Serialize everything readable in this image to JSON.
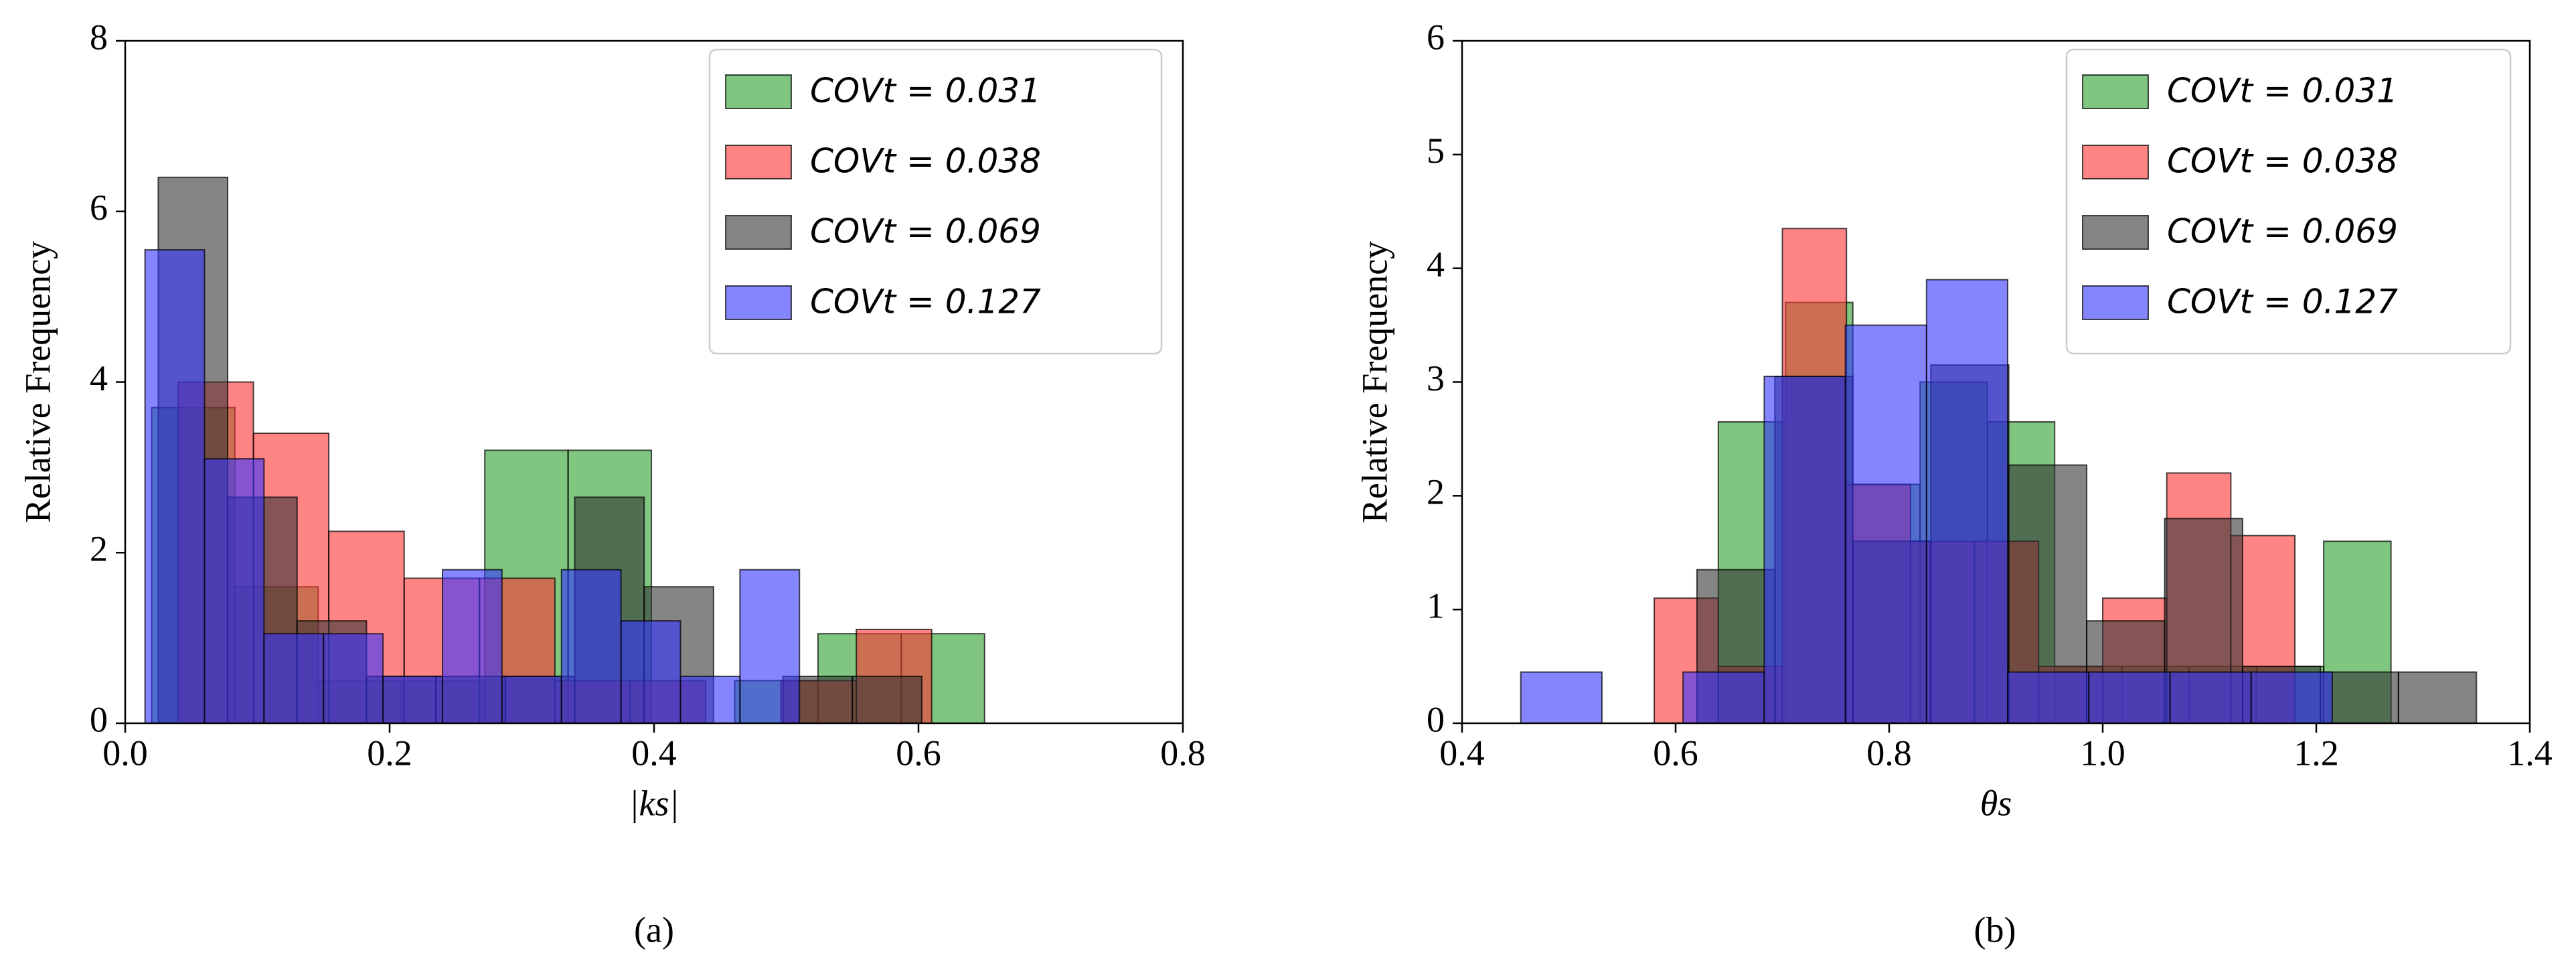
{
  "chart_data": [
    {
      "type": "histogram",
      "caption": "(a)",
      "xlabel": "|ks|",
      "ylabel": "Relative Frequency",
      "xlim": [
        0,
        0.8
      ],
      "ylim": [
        0,
        8
      ],
      "xticks": [
        {
          "value": 0,
          "label": "0.0"
        },
        0.2,
        0.4,
        0.6,
        0.8
      ],
      "yticks": [
        0,
        2,
        4,
        6,
        8
      ],
      "legend": "upper right",
      "series": [
        {
          "name": "COVt = 0.031",
          "color": "#2ca02c",
          "bins": [
            0.02,
            0.083,
            0.146,
            0.209,
            0.272,
            0.335,
            0.398,
            0.461,
            0.524,
            0.587,
            0.65
          ],
          "values": [
            3.7,
            1.6,
            0.5,
            0.5,
            3.2,
            3.2,
            0,
            0.5,
            1.05,
            1.05
          ]
        },
        {
          "name": "COVt = 0.038",
          "color": "#ff3333",
          "bins": [
            0.04,
            0.097,
            0.154,
            0.211,
            0.268,
            0.325,
            0.382,
            0.439,
            0.496,
            0.553,
            0.61
          ],
          "values": [
            4.0,
            3.4,
            2.25,
            1.7,
            1.7,
            0.5,
            0.5,
            0,
            0.5,
            1.1
          ]
        },
        {
          "name": "COVt = 0.069",
          "color": "#333333",
          "bins": [
            0.025,
            0.0775,
            0.13,
            0.1825,
            0.235,
            0.2875,
            0.34,
            0.3925,
            0.445,
            0.4975,
            0.55,
            0.6025
          ],
          "values": [
            6.4,
            2.65,
            1.2,
            0.55,
            0.55,
            0.55,
            2.65,
            1.6,
            0,
            0.55,
            0.55
          ]
        },
        {
          "name": "COVt = 0.127",
          "color": "#3333ff",
          "bins": [
            0.015,
            0.06,
            0.105,
            0.15,
            0.195,
            0.24,
            0.285,
            0.33,
            0.375,
            0.42,
            0.465,
            0.51
          ],
          "values": [
            5.55,
            3.1,
            1.05,
            1.05,
            0.55,
            1.8,
            0.55,
            1.8,
            1.2,
            0.55,
            1.8
          ]
        }
      ]
    },
    {
      "type": "histogram",
      "caption": "(b)",
      "xlabel": "θs",
      "ylabel": "Relative Frequency",
      "xlim": [
        0.4,
        1.4
      ],
      "ylim": [
        0,
        6
      ],
      "xticks": [
        0.4,
        0.6,
        0.8,
        {
          "value": 1,
          "label": "1.0"
        },
        1.2,
        1.4
      ],
      "yticks": [
        0,
        1,
        2,
        3,
        4,
        5,
        6
      ],
      "legend": "upper right",
      "series": [
        {
          "name": "COVt = 0.031",
          "color": "#2ca02c",
          "bins": [
            0.64,
            0.703,
            0.766,
            0.829,
            0.892,
            0.955,
            1.018,
            1.081,
            1.144,
            1.207,
            1.27
          ],
          "values": [
            2.65,
            3.7,
            2.1,
            3.0,
            2.65,
            0.5,
            0.5,
            0.5,
            0.5,
            1.6
          ]
        },
        {
          "name": "COVt = 0.038",
          "color": "#ff3333",
          "bins": [
            0.58,
            0.64,
            0.7,
            0.76,
            0.82,
            0.88,
            0.94,
            1.0,
            1.06,
            1.12,
            1.18
          ],
          "values": [
            1.1,
            0.5,
            4.35,
            2.1,
            1.6,
            1.6,
            0.5,
            1.1,
            2.2,
            1.65
          ]
        },
        {
          "name": "COVt = 0.069",
          "color": "#333333",
          "bins": [
            0.62,
            0.693,
            0.766,
            0.839,
            0.912,
            0.985,
            1.058,
            1.131,
            1.204,
            1.277,
            1.35
          ],
          "values": [
            1.35,
            3.05,
            1.6,
            3.15,
            2.27,
            0.9,
            1.8,
            0.5,
            0.45,
            0.45
          ]
        },
        {
          "name": "COVt = 0.127",
          "color": "#3333ff",
          "bins": [
            0.455,
            0.531,
            0.607,
            0.683,
            0.759,
            0.835,
            0.911,
            0.987,
            1.063,
            1.139,
            1.215
          ],
          "values": [
            0.45,
            0,
            0.45,
            3.05,
            3.5,
            3.9,
            0.45,
            0.45,
            0.45,
            0.45
          ]
        }
      ]
    }
  ]
}
